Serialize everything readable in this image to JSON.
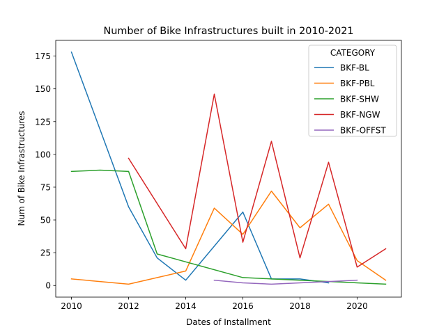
{
  "chart_data": {
    "type": "line",
    "title": "Number of Bike Infrastructures built in 2010-2021",
    "xlabel": "Dates of Installment",
    "ylabel": "Num of Bike Infrastructures",
    "xlim": [
      2009.45,
      2021.55
    ],
    "ylim": [
      -8.9,
      187
    ],
    "xticks": [
      2010,
      2012,
      2014,
      2016,
      2018,
      2020
    ],
    "yticks": [
      0,
      25,
      50,
      75,
      100,
      125,
      150,
      175
    ],
    "grid": false,
    "legend": {
      "title": "CATEGORY",
      "placement": "top-right"
    },
    "series": [
      {
        "name": "BKF-BL",
        "color": "#1f77b4",
        "x": [
          2010,
          2012,
          2013,
          2014,
          2016,
          2017,
          2018,
          2019
        ],
        "y": [
          178,
          60,
          21,
          4,
          56,
          5,
          5,
          2
        ]
      },
      {
        "name": "BKF-PBL",
        "color": "#ff7f0e",
        "x": [
          2010,
          2012,
          2014,
          2015,
          2016,
          2017,
          2018,
          2019,
          2020,
          2021
        ],
        "y": [
          5,
          1,
          11,
          59,
          39,
          72,
          44,
          62,
          19,
          4
        ]
      },
      {
        "name": "BKF-SHW",
        "color": "#2ca02c",
        "x": [
          2010,
          2011,
          2012,
          2013,
          2016,
          2017,
          2018,
          2020,
          2021
        ],
        "y": [
          87,
          88,
          87,
          24,
          6,
          5,
          4,
          2,
          1
        ]
      },
      {
        "name": "BKF-NGW",
        "color": "#d62728",
        "x": [
          2012,
          2014,
          2015,
          2016,
          2017,
          2018,
          2019,
          2020,
          2021
        ],
        "y": [
          97,
          28,
          146,
          33,
          110,
          21,
          94,
          14,
          28
        ]
      },
      {
        "name": "BKF-OFFST",
        "color": "#9467bd",
        "x": [
          2015,
          2016,
          2017,
          2019,
          2020
        ],
        "y": [
          4,
          2,
          1,
          3,
          4
        ]
      }
    ]
  }
}
